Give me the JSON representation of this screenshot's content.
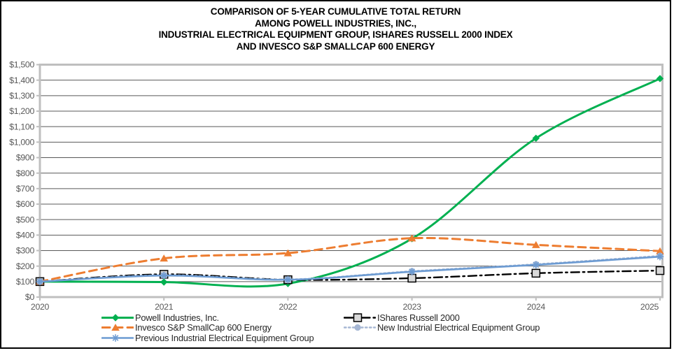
{
  "title": {
    "lines": [
      "COMPARISON OF 5-YEAR CUMULATIVE TOTAL RETURN",
      "AMONG POWELL INDUSTRIES, INC.,",
      "INDUSTRIAL ELECTRICAL EQUIPMENT GROUP, ISHARES RUSSELL 2000 INDEX",
      "AND INVESCO S&P SMALLCAP 600 ENERGY"
    ]
  },
  "chart_data": {
    "type": "line",
    "x": [
      2020,
      2021,
      2022,
      2023,
      2024,
      2025
    ],
    "xtick_labels": [
      "2020",
      "2021",
      "2022",
      "2023",
      "2024",
      "2025"
    ],
    "ylim": [
      0,
      1500
    ],
    "ytick_step": 100,
    "ytick_labels_top_to_bottom": [
      "$1,500",
      "$1,400",
      "$1,300",
      "$1,200",
      "$1,100",
      "$1,000",
      "$900",
      "$800",
      "$700",
      "$600",
      "$500",
      "$400",
      "$300",
      "$200",
      "$100",
      "$0"
    ],
    "grid": true,
    "legend_position": "bottom",
    "series": [
      {
        "name": "Powell Industries, Inc.",
        "values": [
          100,
          97,
          87,
          377,
          1025,
          1410
        ],
        "color": "#00B050",
        "line_style": "solid",
        "line_width": 3,
        "marker": "diamond",
        "marker_fill": "#00B050"
      },
      {
        "name": "IShares Russell 2000",
        "values": [
          100,
          147,
          112,
          122,
          154,
          171
        ],
        "color": "#000000",
        "line_style": "dash-dot",
        "line_width": 2.4,
        "marker": "square",
        "marker_fill": "#D9D9D9"
      },
      {
        "name": "Invesco S&P SmallCap 600 Energy",
        "values": [
          100,
          250,
          284,
          380,
          337,
          297
        ],
        "color": "#ED7D31",
        "line_style": "dashed",
        "line_width": 3,
        "marker": "triangle",
        "marker_fill": "#ED7D31"
      },
      {
        "name": "New Industrial Electrical Equipment Group",
        "values": [
          100,
          141,
          114,
          167,
          212,
          266
        ],
        "color": "#A6B7D4",
        "line_style": "dotted",
        "line_width": 2.4,
        "marker": "circle",
        "marker_fill": "#A6B7D4"
      },
      {
        "name": "Previous Industrial Electrical Equipment Group",
        "values": [
          100,
          139,
          112,
          164,
          208,
          261
        ],
        "color": "#6C9BD2",
        "line_style": "solid",
        "line_width": 2.6,
        "marker": "asterisk",
        "marker_fill": "#6C9BD2"
      }
    ],
    "legend_columns": [
      [
        0,
        2,
        4
      ],
      [
        1,
        3
      ]
    ]
  },
  "axis": {
    "tick_label_color": "#595959",
    "grid_color": "#595959",
    "frame_color": "#BFBFBF"
  }
}
